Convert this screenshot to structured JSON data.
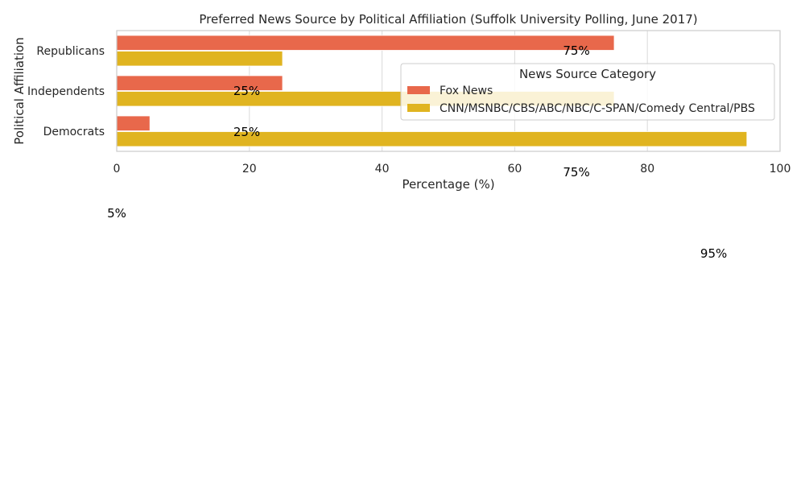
{
  "chart_data": {
    "type": "bar",
    "orientation": "horizontal",
    "title": "Preferred News Source by Political Affiliation (Suffolk University Polling, June 2017)",
    "xlabel": "Percentage (%)",
    "ylabel": "Political Affiliation",
    "xlim": [
      0,
      100
    ],
    "x_ticks": [
      "0",
      "20",
      "40",
      "60",
      "80",
      "100"
    ],
    "categories": [
      "Republicans",
      "Independents",
      "Democrats"
    ],
    "series": [
      {
        "name": "Fox News",
        "color": "#e8684b",
        "values": [
          75,
          25,
          5
        ]
      },
      {
        "name": "CNN/MSNBC/CBS/ABC/NBC/C-SPAN/Comedy Central/PBS",
        "color": "#e0b420",
        "values": [
          25,
          75,
          95
        ]
      }
    ],
    "data_labels": [
      "75%",
      "25%",
      "25%",
      "75%",
      "5%",
      "95%"
    ],
    "legend": {
      "title": "News Source Category",
      "position": "center-right"
    },
    "grid": true
  }
}
